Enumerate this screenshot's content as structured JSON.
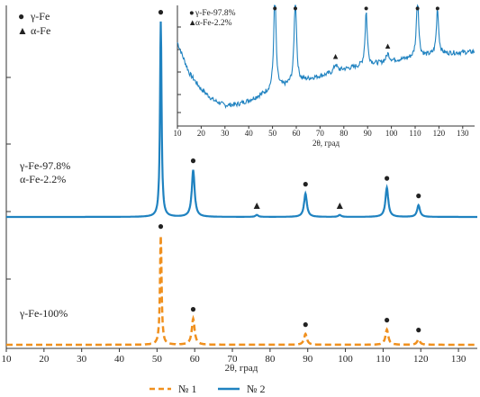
{
  "chart_data": [
    {
      "type": "line",
      "xlabel": "2θ, град",
      "xlim": [
        10,
        135
      ],
      "x_ticks": [
        10,
        20,
        30,
        40,
        50,
        60,
        70,
        80,
        90,
        100,
        110,
        120,
        130
      ],
      "legend": {
        "position": "bottom",
        "entries": [
          "№ 1",
          "№ 2"
        ]
      },
      "marker_legend": [
        {
          "symbol": "●",
          "label": "γ-Fe"
        },
        {
          "symbol": "▲",
          "label": "α-Fe"
        }
      ],
      "series": [
        {
          "name": "№ 2",
          "color": "#1f82c0",
          "style": "solid",
          "composition": [
            "γ-Fe-97.8%",
            "α-Fe-2.2%"
          ],
          "baseline": 0.0,
          "peaks": [
            {
              "x": 51.0,
              "height": 1.0,
              "phase": "γ-Fe"
            },
            {
              "x": 59.6,
              "height": 0.24,
              "phase": "γ-Fe"
            },
            {
              "x": 76.5,
              "height": 0.01,
              "phase": "α-Fe"
            },
            {
              "x": 89.4,
              "height": 0.12,
              "phase": "γ-Fe"
            },
            {
              "x": 98.5,
              "height": 0.01,
              "phase": "α-Fe"
            },
            {
              "x": 111.0,
              "height": 0.15,
              "phase": "γ-Fe"
            },
            {
              "x": 119.4,
              "height": 0.06,
              "phase": "γ-Fe"
            }
          ]
        },
        {
          "name": "№ 1",
          "color": "#f0901e",
          "style": "dashed",
          "composition": [
            "γ-Fe-100%"
          ],
          "baseline": 0.0,
          "peaks": [
            {
              "x": 51.0,
              "height": 1.0,
              "phase": "γ-Fe"
            },
            {
              "x": 59.6,
              "height": 0.24,
              "phase": "γ-Fe"
            },
            {
              "x": 89.4,
              "height": 0.1,
              "phase": "γ-Fe"
            },
            {
              "x": 111.0,
              "height": 0.14,
              "phase": "γ-Fe"
            },
            {
              "x": 119.4,
              "height": 0.05,
              "phase": "γ-Fe"
            }
          ]
        }
      ]
    },
    {
      "type": "line",
      "role": "inset",
      "xlabel": "2θ, град",
      "xlim": [
        10,
        135
      ],
      "x_ticks": [
        10,
        20,
        30,
        40,
        50,
        60,
        70,
        80,
        90,
        100,
        110,
        120,
        130
      ],
      "series": [
        {
          "name": "№ 2",
          "color": "#1f82c0",
          "composition": [
            "γ-Fe-97.8%",
            "α-Fe-2.2%"
          ],
          "background": [
            [
              10,
              0.95
            ],
            [
              15,
              0.55
            ],
            [
              20,
              0.34
            ],
            [
              25,
              0.2
            ],
            [
              30,
              0.13
            ],
            [
              35,
              0.14
            ],
            [
              40,
              0.19
            ],
            [
              45,
              0.26
            ],
            [
              50,
              0.33
            ],
            [
              55,
              0.38
            ],
            [
              60,
              0.43
            ],
            [
              65,
              0.47
            ],
            [
              70,
              0.51
            ],
            [
              75,
              0.55
            ],
            [
              80,
              0.6
            ],
            [
              85,
              0.63
            ],
            [
              90,
              0.66
            ],
            [
              95,
              0.68
            ],
            [
              100,
              0.71
            ],
            [
              105,
              0.73
            ],
            [
              110,
              0.76
            ],
            [
              115,
              0.78
            ],
            [
              120,
              0.8
            ],
            [
              125,
              0.81
            ],
            [
              130,
              0.82
            ],
            [
              135,
              0.83
            ]
          ],
          "peaks": [
            {
              "x": 51.0,
              "height": 1.3,
              "phase": "γ-Fe"
            },
            {
              "x": 59.6,
              "height": 1.2,
              "phase": "γ-Fe"
            },
            {
              "x": 76.5,
              "height": 0.1,
              "phase": "α-Fe"
            },
            {
              "x": 89.4,
              "height": 0.7,
              "phase": "γ-Fe"
            },
            {
              "x": 98.5,
              "height": 0.1,
              "phase": "α-Fe"
            },
            {
              "x": 111.0,
              "height": 0.8,
              "phase": "γ-Fe"
            },
            {
              "x": 119.4,
              "height": 0.6,
              "phase": "γ-Fe"
            }
          ]
        }
      ]
    }
  ]
}
